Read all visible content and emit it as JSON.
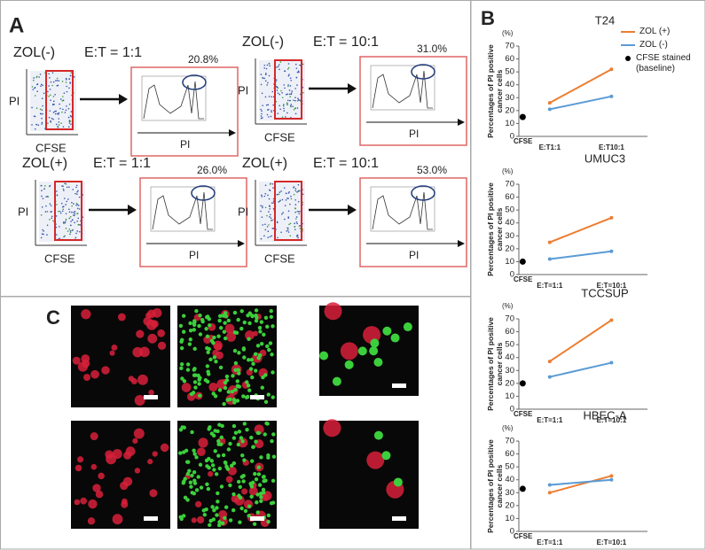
{
  "panel_labels": [
    "A",
    "B",
    "C"
  ],
  "flow_axes": {
    "y": "PI",
    "x": "CFSE",
    "hist_x": "PI"
  },
  "flow": [
    {
      "group": "ZOL(-)",
      "ratio": "E:T = 1:1",
      "percent": "20.8%"
    },
    {
      "group": "ZOL(-)",
      "ratio": "E:T = 10:1",
      "percent": "31.0%"
    },
    {
      "group": "ZOL(+)",
      "ratio": "E:T = 1:1",
      "percent": "26.0%"
    },
    {
      "group": "ZOL(+)",
      "ratio": "E:T = 10:1",
      "percent": "53.0%"
    }
  ],
  "chart_data": [
    {
      "type": "line",
      "title": "T24",
      "unit": "(%)",
      "y_label": "Percentages of PI positive cancer cells",
      "categories": [
        "CFSE",
        "E:T1:1",
        "E:T10:1"
      ],
      "ylim": [
        0,
        70
      ],
      "yticks": [
        0,
        10,
        20,
        30,
        40,
        50,
        60,
        70
      ],
      "legend": "top-right",
      "series": [
        {
          "name": "ZOL (+)",
          "color": "#ed7d31",
          "values": [
            null,
            26,
            52
          ]
        },
        {
          "name": "ZOL (-)",
          "color": "#5b9bd5",
          "values": [
            null,
            21,
            31
          ]
        },
        {
          "name": "CFSE stained (baseline)",
          "color": "#000000",
          "values": [
            15,
            null,
            null
          ]
        }
      ]
    },
    {
      "type": "line",
      "title": "UMUC3",
      "unit": "(%)",
      "y_label": "Percentages of PI positive cancer cells",
      "categories": [
        "CFSE",
        "E:T=1:1",
        "E:T=10:1"
      ],
      "ylim": [
        0,
        70
      ],
      "yticks": [
        0,
        10,
        20,
        30,
        40,
        50,
        60,
        70
      ],
      "series": [
        {
          "color": "#ed7d31",
          "values": [
            null,
            25,
            44
          ]
        },
        {
          "color": "#5b9bd5",
          "values": [
            null,
            12,
            18
          ]
        },
        {
          "color": "#000000",
          "values": [
            10,
            null,
            null
          ]
        }
      ]
    },
    {
      "type": "line",
      "title": "TCCSUP",
      "unit": "(%)",
      "y_label": "Percentages of PI positive cancer cells",
      "categories": [
        "CFSE",
        "E:T=1:1",
        "E:T=10:1"
      ],
      "ylim": [
        0,
        70
      ],
      "yticks": [
        0,
        10,
        20,
        30,
        40,
        50,
        60,
        70
      ],
      "series": [
        {
          "color": "#ed7d31",
          "values": [
            null,
            37,
            69
          ]
        },
        {
          "color": "#5b9bd5",
          "values": [
            null,
            25,
            36
          ]
        },
        {
          "color": "#000000",
          "values": [
            20,
            null,
            null
          ]
        }
      ]
    },
    {
      "type": "line",
      "title": "HBEC-A",
      "unit": "(%)",
      "y_label": "Percentages of PI positive cancer cells",
      "categories": [
        "CFSE",
        "E:T=1:1",
        "E:T=10:1"
      ],
      "ylim": [
        0,
        70
      ],
      "yticks": [
        0,
        10,
        20,
        30,
        40,
        50,
        60,
        70
      ],
      "series": [
        {
          "color": "#ed7d31",
          "values": [
            null,
            30,
            43
          ]
        },
        {
          "color": "#5b9bd5",
          "values": [
            null,
            36,
            40
          ]
        },
        {
          "color": "#000000",
          "values": [
            33,
            null,
            null
          ]
        }
      ]
    }
  ]
}
